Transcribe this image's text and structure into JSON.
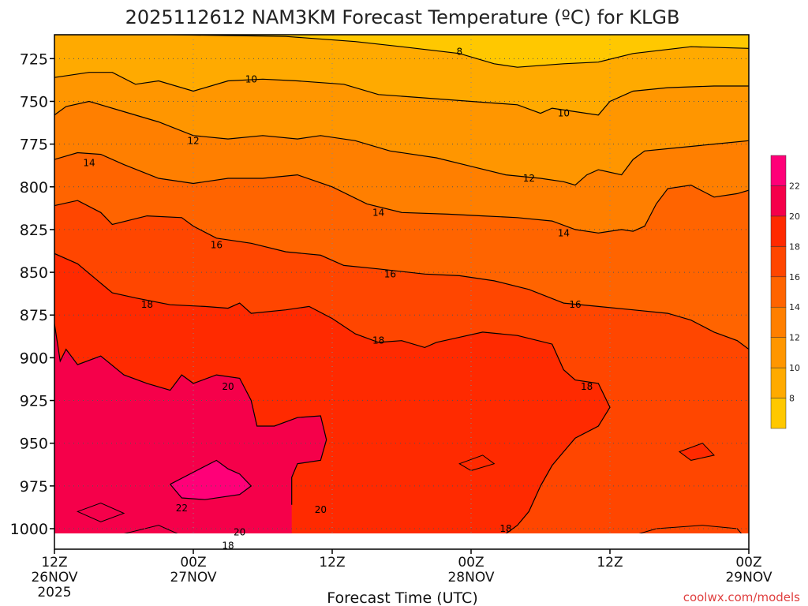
{
  "chart_data": {
    "type": "heatmap",
    "title": "2025112612 NAM3KM Forecast Temperature (ºC) for KLGB",
    "xlabel": "Forecast Time (UTC)",
    "ylabel": "",
    "credit": "coolwx.com/models",
    "x_ticks": [
      {
        "hour": 0,
        "line1": "12Z",
        "line2": "26NOV",
        "line3": "2025"
      },
      {
        "hour": 12,
        "line1": "00Z",
        "line2": "27NOV",
        "line3": ""
      },
      {
        "hour": 24,
        "line1": "12Z",
        "line2": "",
        "line3": ""
      },
      {
        "hour": 36,
        "line1": "00Z",
        "line2": "28NOV",
        "line3": ""
      },
      {
        "hour": 48,
        "line1": "12Z",
        "line2": "",
        "line3": ""
      },
      {
        "hour": 60,
        "line1": "00Z",
        "line2": "29NOV",
        "line3": ""
      }
    ],
    "xlim": [
      0,
      60
    ],
    "y_ticks": [
      725,
      750,
      775,
      800,
      825,
      850,
      875,
      900,
      925,
      950,
      975,
      1000
    ],
    "ylim": [
      711,
      1012
    ],
    "ground_hpa": 1008,
    "colorbar": {
      "levels": [
        6,
        8,
        10,
        12,
        14,
        16,
        18,
        20,
        22,
        24
      ],
      "labels": [
        "8",
        "10",
        "12",
        "14",
        "16",
        "18",
        "20",
        "22"
      ],
      "colors": [
        "#ffc800",
        "#ffaa00",
        "#ff9600",
        "#ff7f00",
        "#ff6400",
        "#ff4600",
        "#ff2a00",
        "#f5004a",
        "#ff0078"
      ]
    },
    "isotherms": [
      {
        "level": 8,
        "label": "8",
        "points": [
          [
            0,
            711
          ],
          [
            10,
            711
          ],
          [
            20,
            712
          ],
          [
            26,
            715
          ],
          [
            30,
            718
          ],
          [
            35,
            722
          ],
          [
            38,
            728
          ],
          [
            40,
            730
          ],
          [
            44,
            728
          ],
          [
            47,
            727
          ],
          [
            50,
            722
          ],
          [
            55,
            718
          ],
          [
            60,
            719
          ]
        ]
      },
      {
        "level": 10,
        "label": "10",
        "points": [
          [
            0,
            736
          ],
          [
            3,
            733
          ],
          [
            5,
            733
          ],
          [
            7,
            740
          ],
          [
            9,
            738
          ],
          [
            12,
            744
          ],
          [
            15,
            738
          ],
          [
            18,
            737
          ],
          [
            21,
            738
          ],
          [
            25,
            740
          ],
          [
            28,
            746
          ],
          [
            32,
            748
          ],
          [
            36,
            750
          ],
          [
            40,
            752
          ],
          [
            42,
            757
          ],
          [
            43,
            754
          ],
          [
            45,
            756
          ],
          [
            47,
            758
          ],
          [
            48,
            750
          ],
          [
            50,
            744
          ],
          [
            53,
            742
          ],
          [
            57,
            741
          ],
          [
            60,
            741
          ]
        ]
      },
      {
        "level": 12,
        "label": "12",
        "points": [
          [
            0,
            758
          ],
          [
            1,
            753
          ],
          [
            3,
            750
          ],
          [
            6,
            756
          ],
          [
            9,
            762
          ],
          [
            12,
            770
          ],
          [
            15,
            772
          ],
          [
            18,
            770
          ],
          [
            21,
            772
          ],
          [
            23,
            770
          ],
          [
            26,
            773
          ],
          [
            29,
            779
          ],
          [
            33,
            783
          ],
          [
            36,
            788
          ],
          [
            39,
            793
          ],
          [
            42,
            795
          ],
          [
            44,
            797
          ],
          [
            45,
            799
          ],
          [
            46,
            793
          ],
          [
            47,
            790
          ],
          [
            49,
            793
          ],
          [
            50,
            784
          ],
          [
            51,
            779
          ],
          [
            54,
            777
          ],
          [
            57,
            775
          ],
          [
            60,
            773
          ]
        ]
      },
      {
        "level": 14,
        "label": "14",
        "points": [
          [
            0,
            784
          ],
          [
            2,
            780
          ],
          [
            4,
            781
          ],
          [
            6,
            787
          ],
          [
            9,
            795
          ],
          [
            12,
            798
          ],
          [
            15,
            795
          ],
          [
            18,
            795
          ],
          [
            21,
            793
          ],
          [
            24,
            800
          ],
          [
            27,
            810
          ],
          [
            30,
            815
          ],
          [
            34,
            816
          ],
          [
            37,
            817
          ],
          [
            40,
            818
          ],
          [
            43,
            820
          ],
          [
            45,
            825
          ],
          [
            47,
            827
          ],
          [
            49,
            825
          ],
          [
            50,
            826
          ],
          [
            51,
            823
          ],
          [
            52,
            810
          ],
          [
            53,
            801
          ],
          [
            55,
            799
          ],
          [
            57,
            806
          ],
          [
            59,
            804
          ],
          [
            60,
            802
          ]
        ]
      },
      {
        "level": 16,
        "label": "16",
        "points": [
          [
            0,
            811
          ],
          [
            2,
            808
          ],
          [
            4,
            815
          ],
          [
            5,
            822
          ],
          [
            8,
            817
          ],
          [
            11,
            818
          ],
          [
            12,
            823
          ],
          [
            14,
            830
          ],
          [
            17,
            833
          ],
          [
            20,
            838
          ],
          [
            23,
            840
          ],
          [
            25,
            846
          ],
          [
            28,
            848
          ],
          [
            32,
            851
          ],
          [
            35,
            852
          ],
          [
            38,
            855
          ],
          [
            41,
            860
          ],
          [
            44,
            868
          ],
          [
            47,
            870
          ],
          [
            50,
            872
          ],
          [
            53,
            874
          ],
          [
            55,
            878
          ],
          [
            57,
            885
          ],
          [
            59,
            890
          ],
          [
            60,
            895
          ]
        ]
      },
      {
        "level": 18,
        "label": "18",
        "points": [
          [
            0,
            839
          ],
          [
            2,
            845
          ],
          [
            5,
            862
          ],
          [
            7,
            865
          ],
          [
            10,
            869
          ],
          [
            13,
            870
          ],
          [
            15,
            871
          ],
          [
            16,
            868
          ],
          [
            17,
            874
          ],
          [
            20,
            872
          ],
          [
            22,
            870
          ],
          [
            24,
            877
          ],
          [
            26,
            886
          ],
          [
            28,
            891
          ],
          [
            30,
            890
          ],
          [
            32,
            894
          ],
          [
            33,
            891
          ],
          [
            35,
            888
          ],
          [
            37,
            885
          ],
          [
            40,
            887
          ],
          [
            43,
            892
          ],
          [
            44,
            907
          ],
          [
            45,
            913
          ],
          [
            47,
            915
          ],
          [
            48,
            929
          ],
          [
            47,
            940
          ],
          [
            45,
            947
          ],
          [
            44,
            955
          ],
          [
            43,
            963
          ],
          [
            42,
            975
          ],
          [
            41,
            990
          ],
          [
            40,
            998
          ],
          [
            39,
            1003
          ]
        ]
      },
      {
        "level": 20,
        "label": "20",
        "points": [
          [
            0,
            880
          ],
          [
            0.5,
            902
          ],
          [
            1,
            895
          ],
          [
            2,
            904
          ],
          [
            4,
            899
          ],
          [
            6,
            910
          ],
          [
            8,
            915
          ],
          [
            10,
            919
          ],
          [
            11,
            910
          ],
          [
            12,
            915
          ],
          [
            14,
            910
          ],
          [
            16,
            912
          ],
          [
            17,
            925
          ],
          [
            17.5,
            940
          ],
          [
            19,
            940
          ],
          [
            21,
            935
          ],
          [
            23,
            934
          ],
          [
            23.5,
            948
          ],
          [
            23,
            960
          ],
          [
            21,
            962
          ],
          [
            20.5,
            970
          ],
          [
            20.5,
            986
          ]
        ]
      },
      {
        "level": 22,
        "label": "22",
        "points": [
          [
            10,
            974
          ],
          [
            12,
            967
          ],
          [
            14,
            960
          ],
          [
            15,
            965
          ],
          [
            16,
            968
          ],
          [
            17,
            975
          ],
          [
            16,
            980
          ],
          [
            13,
            983
          ],
          [
            11,
            982
          ],
          [
            10,
            974
          ]
        ]
      }
    ]
  }
}
